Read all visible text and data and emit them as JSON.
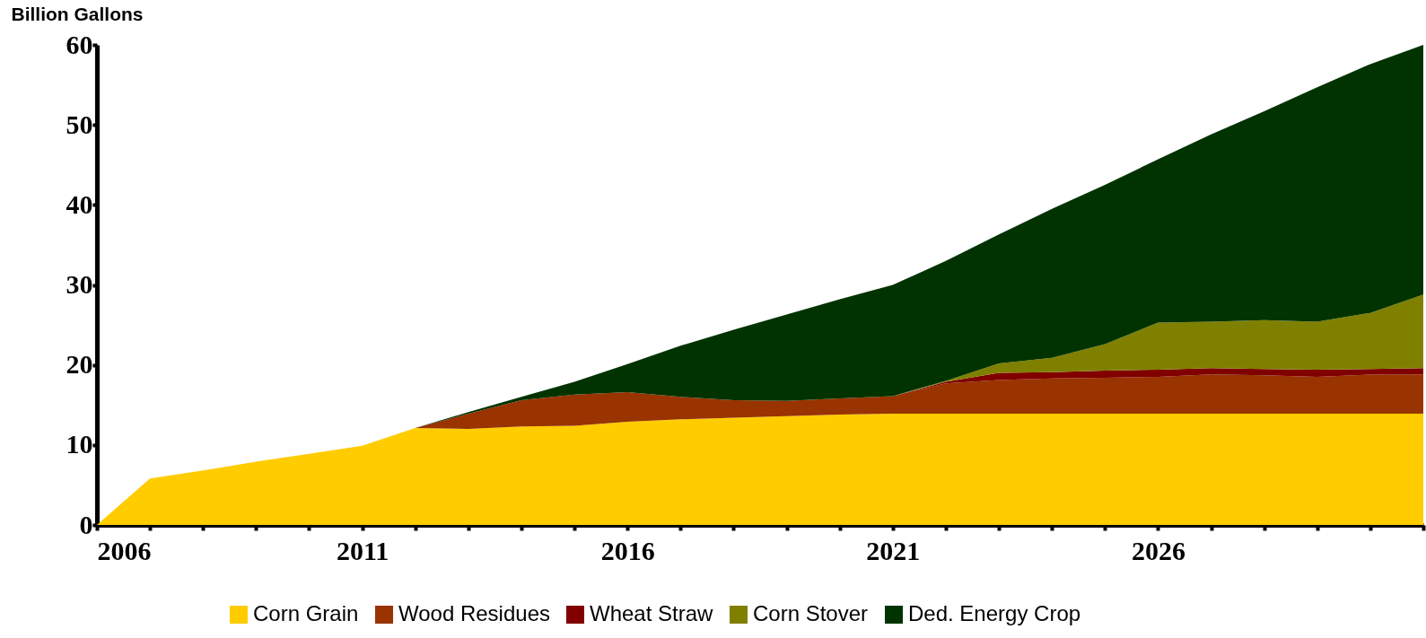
{
  "chart_data": {
    "type": "area",
    "stacked": true,
    "ylabel": "Billion Gallons",
    "x": [
      2006,
      2007,
      2008,
      2009,
      2010,
      2011,
      2012,
      2013,
      2014,
      2015,
      2016,
      2017,
      2018,
      2019,
      2020,
      2021,
      2022,
      2023,
      2024,
      2025,
      2026,
      2027,
      2028,
      2029,
      2030,
      2031
    ],
    "xlim": [
      2006,
      2031
    ],
    "xticks": [
      2006,
      {
        "value": 2007,
        "label": null
      },
      {
        "value": 2008,
        "label": null
      },
      {
        "value": 2009,
        "label": null
      },
      {
        "value": 2010,
        "label": null
      },
      2011,
      {
        "value": 2012,
        "label": null
      },
      {
        "value": 2013,
        "label": null
      },
      {
        "value": 2014,
        "label": null
      },
      {
        "value": 2015,
        "label": null
      },
      2016,
      {
        "value": 2017,
        "label": null
      },
      {
        "value": 2018,
        "label": null
      },
      {
        "value": 2019,
        "label": null
      },
      {
        "value": 2020,
        "label": null
      },
      2021,
      {
        "value": 2022,
        "label": null
      },
      {
        "value": 2023,
        "label": null
      },
      {
        "value": 2024,
        "label": null
      },
      {
        "value": 2025,
        "label": null
      },
      2026,
      {
        "value": 2027,
        "label": null
      },
      {
        "value": 2028,
        "label": null
      },
      {
        "value": 2029,
        "label": null
      },
      {
        "value": 2030,
        "label": null
      },
      {
        "value": 2031,
        "label": null
      }
    ],
    "ylim": [
      0,
      60
    ],
    "yticks": [
      0,
      10,
      20,
      30,
      40,
      50,
      60
    ],
    "grid": false,
    "legend": "bottom",
    "series": [
      {
        "name": "Corn Grain",
        "color": "#ffcc00",
        "values": [
          0,
          5.8,
          6.8,
          7.9,
          8.9,
          9.9,
          12.1,
          12.0,
          12.3,
          12.4,
          12.9,
          13.2,
          13.4,
          13.6,
          13.8,
          13.9,
          13.9,
          13.9,
          13.9,
          13.9,
          13.9,
          13.9,
          13.9,
          13.9,
          13.9,
          13.9
        ]
      },
      {
        "name": "Wood Residues",
        "color": "#993300",
        "values": [
          0,
          0,
          0,
          0,
          0,
          0,
          0,
          1.9,
          3.3,
          3.9,
          3.7,
          2.8,
          2.2,
          1.9,
          2.0,
          2.2,
          3.8,
          4.2,
          4.4,
          4.5,
          4.6,
          4.9,
          4.8,
          4.6,
          4.9,
          4.9
        ]
      },
      {
        "name": "Wheat Straw",
        "color": "#800000",
        "values": [
          0,
          0,
          0,
          0,
          0,
          0,
          0,
          0,
          0,
          0,
          0,
          0,
          0,
          0,
          0,
          0,
          0.2,
          0.9,
          0.8,
          0.9,
          0.9,
          0.8,
          0.8,
          0.9,
          0.7,
          0.8
        ]
      },
      {
        "name": "Corn Stover",
        "color": "#808000",
        "values": [
          0,
          0,
          0,
          0,
          0,
          0,
          0,
          0,
          0,
          0,
          0,
          0,
          0,
          0,
          0,
          0,
          0.1,
          1.2,
          1.8,
          3.3,
          5.9,
          5.8,
          6.1,
          6.0,
          7.0,
          9.2
        ]
      },
      {
        "name": "Ded. Energy Crop",
        "color": "#003300",
        "values": [
          0,
          0,
          0,
          0,
          0,
          0,
          0,
          0.2,
          0.4,
          1.6,
          3.5,
          6.4,
          8.8,
          10.8,
          12.4,
          13.9,
          15.0,
          16.1,
          18.6,
          19.9,
          20.4,
          23.4,
          26.1,
          29.3,
          31.1,
          31.2
        ]
      }
    ]
  }
}
